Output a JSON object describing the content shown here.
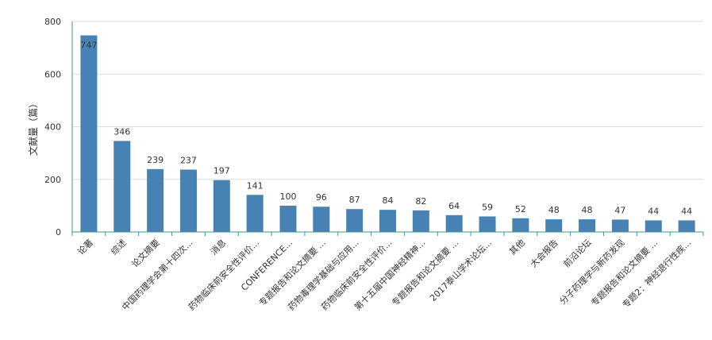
{
  "chart_data": {
    "type": "bar",
    "title": "",
    "ylabel": "文献量（篇）",
    "xlabel": "",
    "ylim": [
      0,
      800
    ],
    "yticks": [
      0,
      200,
      400,
      600,
      800
    ],
    "grid": true,
    "bar_color": "#4682b4",
    "axis_color": "#3a9a8a",
    "categories": [
      "论著",
      "综述",
      "论文摘要",
      "中国药理学会第十四次...",
      "消息",
      "药物临床前安全性评价...",
      "CONFERENCE...",
      "专题报告和论文摘要 ...",
      "药物毒理学基础与应用...",
      "药物临床前安全性评价...",
      "第十五届中国神经精神...",
      "专题报告和论文摘要 ...",
      "2017泰山学术论坛...",
      "其他",
      "大会报告",
      "前沿论坛",
      "分子药理学与新药发现",
      "专题报告和论文摘要 ...",
      "专题2：神经退行性疾..."
    ],
    "values": [
      747,
      346,
      239,
      237,
      197,
      141,
      100,
      96,
      87,
      84,
      82,
      64,
      59,
      52,
      48,
      48,
      47,
      44,
      44
    ]
  }
}
